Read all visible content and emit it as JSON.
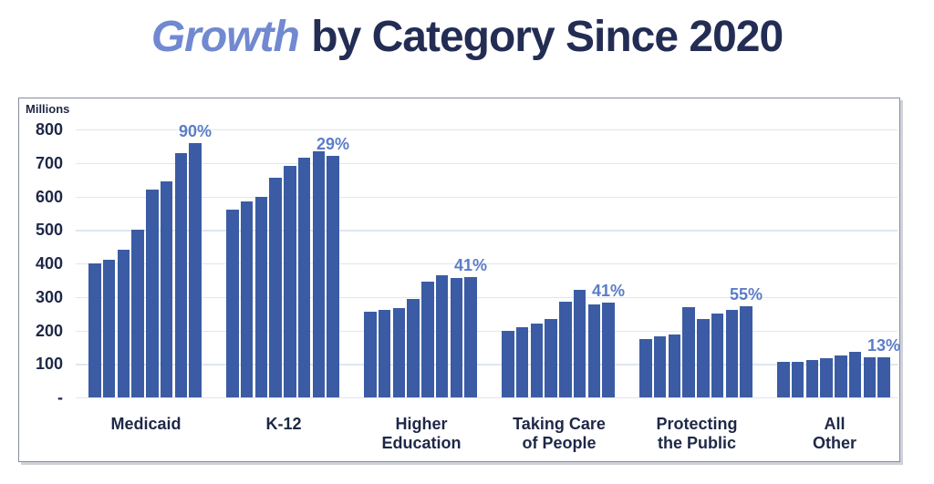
{
  "title": {
    "accent": "Growth",
    "rest": "by Category Since 2020"
  },
  "axis": {
    "unit_label": "Millions"
  },
  "chart_data": {
    "type": "bar",
    "title": "Growth by Category Since 2020",
    "xlabel": "",
    "ylabel": "Millions",
    "ylim": [
      0,
      800
    ],
    "ytick_step": 100,
    "ytick_labels_top_to_bottom": [
      "800",
      "700",
      "600",
      "500",
      "400",
      "300",
      "200",
      "100",
      "-"
    ],
    "grid": true,
    "legend": "none",
    "bars_per_group": 8,
    "groups": [
      {
        "category": "Medicaid",
        "label_lines": [
          "Medicaid"
        ],
        "growth_since_2020": "90%",
        "values": [
          400,
          410,
          440,
          500,
          620,
          645,
          730,
          760
        ]
      },
      {
        "category": "K-12",
        "label_lines": [
          "K-12"
        ],
        "growth_since_2020": "29%",
        "values": [
          560,
          585,
          600,
          655,
          690,
          715,
          735,
          722
        ]
      },
      {
        "category": "Higher Education",
        "label_lines": [
          "Higher",
          "Education"
        ],
        "growth_since_2020": "41%",
        "values": [
          255,
          262,
          268,
          295,
          345,
          365,
          357,
          360
        ]
      },
      {
        "category": "Taking Care of People",
        "label_lines": [
          "Taking Care",
          "of People"
        ],
        "growth_since_2020": "41%",
        "values": [
          200,
          210,
          220,
          235,
          285,
          320,
          277,
          282
        ]
      },
      {
        "category": "Protecting the Public",
        "label_lines": [
          "Protecting",
          "the Public"
        ],
        "growth_since_2020": "55%",
        "values": [
          175,
          183,
          188,
          270,
          233,
          251,
          260,
          271
        ]
      },
      {
        "category": "All Other",
        "label_lines": [
          "All Other"
        ],
        "growth_since_2020": "13%",
        "values": [
          107,
          107,
          111,
          116,
          124,
          136,
          121,
          121
        ]
      }
    ],
    "colors": {
      "bar": "#3b5ca4",
      "pct_label": "#5b7dc7",
      "title_accent": "#7089d0",
      "title_main": "#232d54",
      "axis_text": "#1e2847",
      "gridline": "#dfe6ef",
      "frame_border": "#868ca0"
    }
  }
}
